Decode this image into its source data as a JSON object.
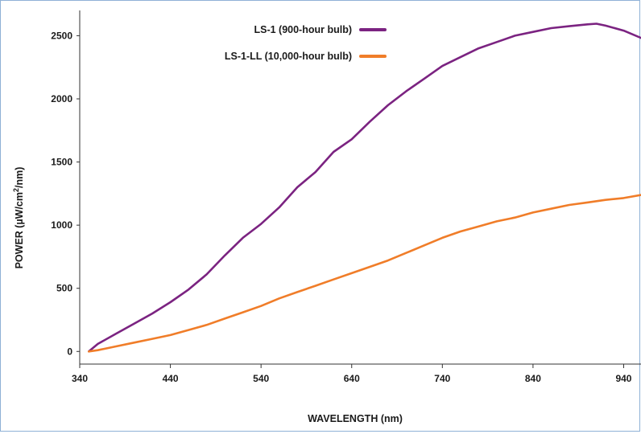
{
  "chart_data": {
    "type": "line",
    "xlabel": "WAVELENGTH (nm)",
    "ylabel_parts": [
      "POWER (µW/cm",
      "2",
      "/nm)"
    ],
    "xlim": [
      340,
      960
    ],
    "ylim": [
      -100,
      2700
    ],
    "x_ticks": [
      340,
      440,
      540,
      640,
      740,
      840,
      940
    ],
    "y_ticks": [
      0,
      500,
      1000,
      1500,
      2000,
      2500
    ],
    "grid": false,
    "legend_position": "top-center",
    "series": [
      {
        "name": "LS-1 (900-hour bulb)",
        "color": "#7b2381",
        "x": [
          350,
          360,
          380,
          400,
          420,
          440,
          460,
          480,
          500,
          520,
          540,
          560,
          580,
          600,
          620,
          640,
          660,
          680,
          700,
          720,
          740,
          760,
          780,
          800,
          820,
          840,
          860,
          880,
          900,
          910,
          920,
          940,
          960
        ],
        "y": [
          0,
          60,
          140,
          220,
          300,
          390,
          490,
          610,
          760,
          900,
          1010,
          1140,
          1300,
          1420,
          1580,
          1680,
          1820,
          1950,
          2060,
          2160,
          2260,
          2330,
          2400,
          2450,
          2500,
          2530,
          2560,
          2575,
          2590,
          2595,
          2580,
          2540,
          2480
        ]
      },
      {
        "name": "LS-1-LL (10,000-hour bulb)",
        "color": "#f07d29",
        "x": [
          350,
          360,
          380,
          400,
          420,
          440,
          460,
          480,
          500,
          520,
          540,
          560,
          580,
          600,
          620,
          640,
          660,
          680,
          700,
          720,
          740,
          760,
          780,
          800,
          820,
          840,
          860,
          880,
          900,
          920,
          940,
          960
        ],
        "y": [
          0,
          10,
          40,
          70,
          100,
          130,
          170,
          210,
          260,
          310,
          360,
          420,
          470,
          520,
          570,
          620,
          670,
          720,
          780,
          840,
          900,
          950,
          990,
          1030,
          1060,
          1100,
          1130,
          1160,
          1180,
          1200,
          1215,
          1240
        ]
      }
    ]
  }
}
